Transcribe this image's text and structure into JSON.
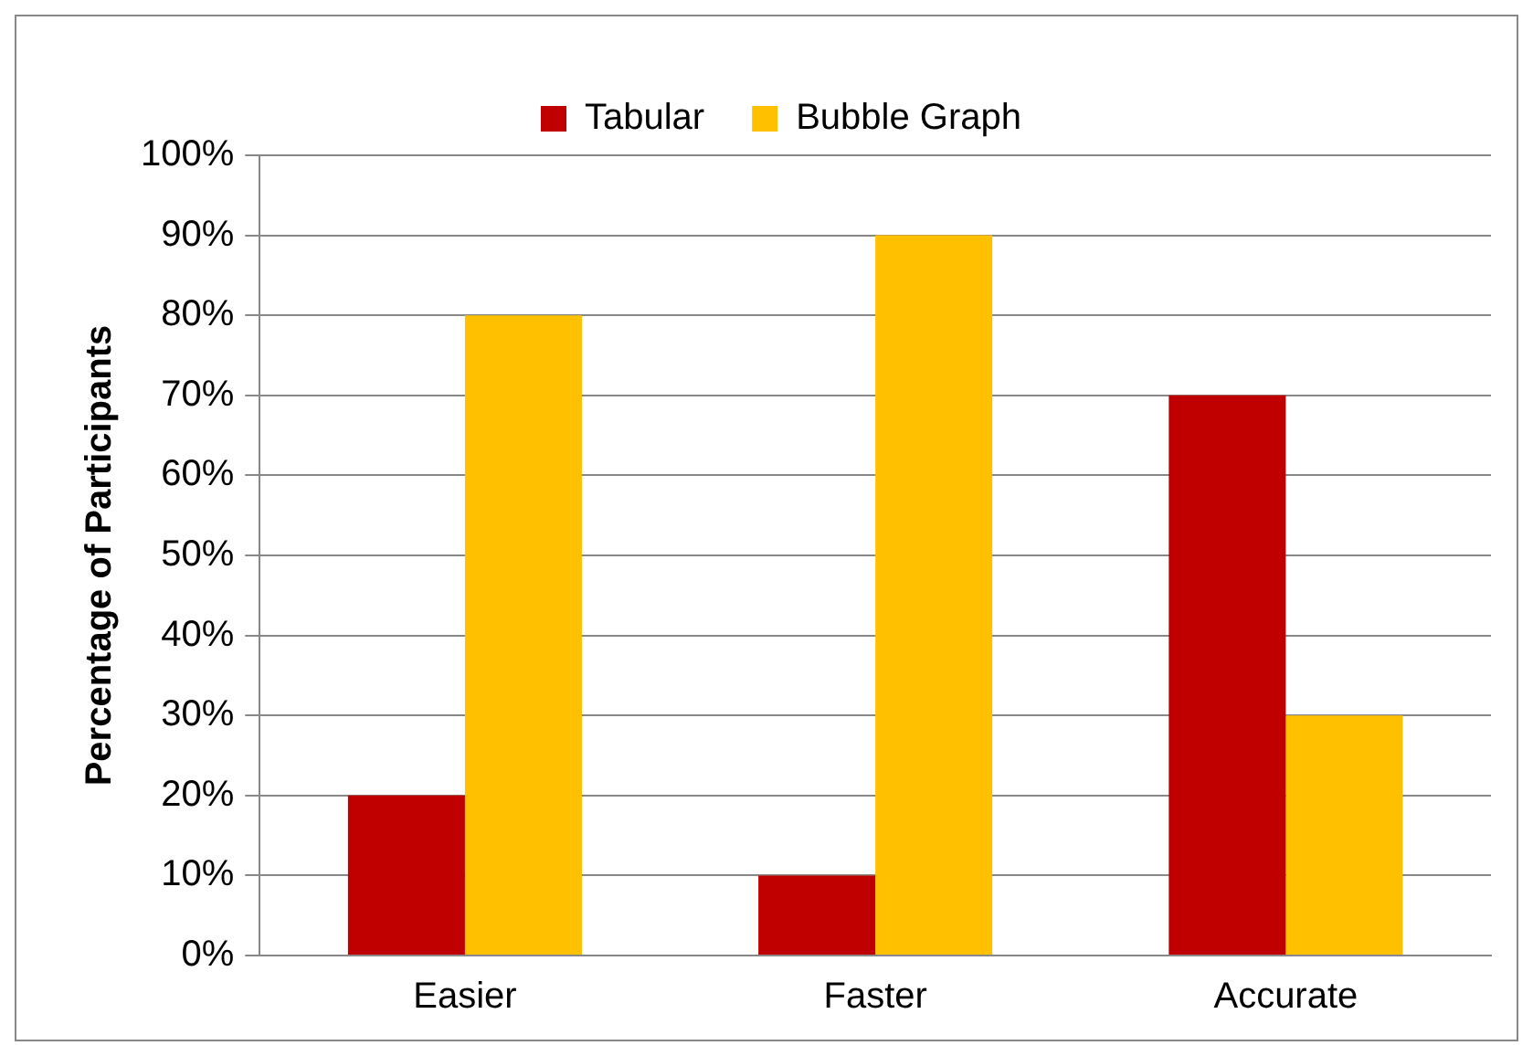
{
  "chart_data": {
    "type": "bar",
    "ylabel": "Percentage of Participants",
    "categories": [
      "Easier",
      "Faster",
      "Accurate"
    ],
    "series": [
      {
        "name": "Tabular",
        "color": "#c00000",
        "values": [
          20,
          10,
          70
        ]
      },
      {
        "name": "Bubble Graph",
        "color": "#ffc000",
        "values": [
          80,
          90,
          30
        ]
      }
    ],
    "ylim": [
      0,
      100
    ],
    "yticks": [
      {
        "value": 0,
        "label": "0%"
      },
      {
        "value": 10,
        "label": "10%"
      },
      {
        "value": 20,
        "label": "20%"
      },
      {
        "value": 30,
        "label": "30%"
      },
      {
        "value": 40,
        "label": "40%"
      },
      {
        "value": 50,
        "label": "50%"
      },
      {
        "value": 60,
        "label": "60%"
      },
      {
        "value": 70,
        "label": "70%"
      },
      {
        "value": 80,
        "label": "80%"
      },
      {
        "value": 90,
        "label": "90%"
      },
      {
        "value": 100,
        "label": "100%"
      }
    ],
    "grid": "y",
    "legend": "top"
  }
}
